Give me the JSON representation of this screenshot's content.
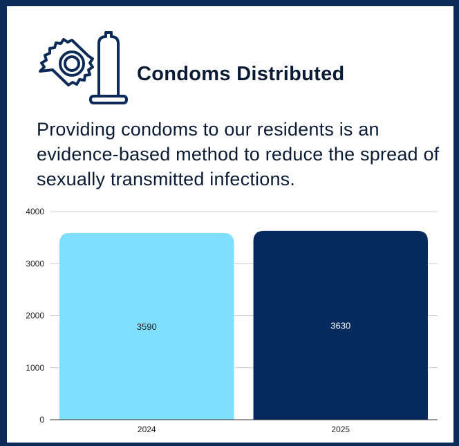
{
  "header": {
    "title": "Condoms Distributed",
    "description": "Providing condoms to our residents is an evidence-based method to reduce the spread of sexually transmitted infections.",
    "icon": "condom-icon"
  },
  "colors": {
    "frame": "#0b2a57",
    "bar_2024": "#7fe0fd",
    "bar_2025": "#052b5e",
    "icon_stroke": "#0b2a57"
  },
  "chart_data": {
    "type": "bar",
    "categories": [
      "2024",
      "2025"
    ],
    "values": [
      3590,
      3630
    ],
    "data_labels": [
      "3590",
      "3630"
    ],
    "ylim": [
      0,
      4000
    ],
    "yticks": [
      0,
      1000,
      2000,
      3000,
      4000
    ],
    "grid": true,
    "title": "",
    "xlabel": "",
    "ylabel": ""
  }
}
